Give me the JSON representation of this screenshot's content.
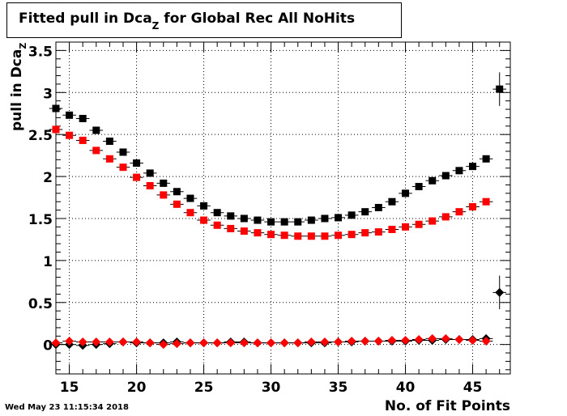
{
  "title": {
    "main": "Fitted pull in Dca",
    "subscript": "Z",
    "rest": " for Global Rec All NoHits"
  },
  "timestamp": "Wed May 23 11:15:34 2018",
  "colors": {
    "series_black": "#000000",
    "series_red": "#ff0000",
    "grid": "#000000"
  },
  "chart_data": {
    "type": "scatter",
    "title": "Fitted pull in Dca_Z for Global Rec All NoHits",
    "xlabel": "No. of Fit Points",
    "ylabel": "pull in Dca",
    "ylabel_subscript": "Z",
    "xlim": [
      14,
      47.8
    ],
    "ylim": [
      -0.35,
      3.6
    ],
    "x_ticks": [
      "15",
      "20",
      "25",
      "30",
      "35",
      "40",
      "45"
    ],
    "y_ticks": [
      "0",
      "0.5",
      "1",
      "1.5",
      "2",
      "2.5",
      "3",
      "3.5"
    ],
    "grid": true,
    "legend": "none",
    "series": [
      {
        "marker": "square",
        "color": "#000000",
        "x": [
          14,
          15,
          16,
          17,
          18,
          19,
          20,
          21,
          22,
          23,
          24,
          25,
          26,
          27,
          28,
          29,
          30,
          31,
          32,
          33,
          34,
          35,
          36,
          37,
          38,
          39,
          40,
          41,
          42,
          43,
          44,
          45,
          46,
          47
        ],
        "y": [
          2.81,
          2.73,
          2.69,
          2.55,
          2.42,
          2.29,
          2.16,
          2.04,
          1.92,
          1.82,
          1.74,
          1.65,
          1.57,
          1.53,
          1.5,
          1.48,
          1.46,
          1.46,
          1.46,
          1.48,
          1.5,
          1.51,
          1.54,
          1.58,
          1.63,
          1.7,
          1.8,
          1.88,
          1.95,
          2.01,
          2.07,
          2.12,
          2.21,
          3.04
        ],
        "y_err": [
          0,
          0,
          0,
          0,
          0,
          0,
          0,
          0,
          0,
          0,
          0,
          0,
          0,
          0,
          0,
          0,
          0,
          0,
          0,
          0,
          0,
          0,
          0,
          0,
          0,
          0,
          0,
          0,
          0,
          0,
          0,
          0,
          0,
          0.2
        ]
      },
      {
        "marker": "square",
        "color": "#ff0000",
        "x": [
          14,
          15,
          16,
          17,
          18,
          19,
          20,
          21,
          22,
          23,
          24,
          25,
          26,
          27,
          28,
          29,
          30,
          31,
          32,
          33,
          34,
          35,
          36,
          37,
          38,
          39,
          40,
          41,
          42,
          43,
          44,
          45,
          46
        ],
        "y": [
          2.56,
          2.49,
          2.43,
          2.31,
          2.21,
          2.11,
          1.99,
          1.89,
          1.78,
          1.67,
          1.57,
          1.48,
          1.42,
          1.38,
          1.35,
          1.33,
          1.31,
          1.3,
          1.29,
          1.29,
          1.29,
          1.3,
          1.31,
          1.33,
          1.34,
          1.37,
          1.4,
          1.43,
          1.47,
          1.52,
          1.58,
          1.64,
          1.7
        ],
        "y_err": [
          0,
          0,
          0,
          0,
          0,
          0,
          0,
          0,
          0,
          0,
          0,
          0,
          0,
          0,
          0,
          0,
          0,
          0,
          0,
          0,
          0,
          0,
          0,
          0,
          0,
          0,
          0,
          0,
          0,
          0,
          0,
          0,
          0
        ]
      },
      {
        "marker": "diamond",
        "color": "#000000",
        "x": [
          14,
          15,
          16,
          17,
          18,
          19,
          20,
          21,
          22,
          23,
          24,
          25,
          26,
          27,
          28,
          29,
          30,
          31,
          32,
          33,
          34,
          35,
          36,
          37,
          38,
          39,
          40,
          41,
          42,
          43,
          44,
          45,
          46,
          47
        ],
        "y": [
          0.0,
          0.0,
          -0.01,
          0.0,
          0.01,
          0.03,
          0.02,
          0.02,
          0.02,
          0.03,
          0.02,
          0.02,
          0.02,
          0.03,
          0.03,
          0.02,
          0.02,
          0.02,
          0.02,
          0.02,
          0.02,
          0.03,
          0.03,
          0.04,
          0.04,
          0.04,
          0.04,
          0.05,
          0.05,
          0.06,
          0.06,
          0.06,
          0.07,
          0.62
        ],
        "y_err": [
          0,
          0,
          0,
          0,
          0,
          0,
          0,
          0,
          0,
          0,
          0,
          0,
          0,
          0,
          0,
          0,
          0,
          0,
          0,
          0,
          0,
          0,
          0,
          0,
          0,
          0,
          0,
          0,
          0,
          0,
          0,
          0,
          0,
          0.2
        ]
      },
      {
        "marker": "diamond",
        "color": "#ff0000",
        "x": [
          14,
          15,
          16,
          17,
          18,
          19,
          20,
          21,
          22,
          23,
          24,
          25,
          26,
          27,
          28,
          29,
          30,
          31,
          32,
          33,
          34,
          35,
          36,
          37,
          38,
          39,
          40,
          41,
          42,
          43,
          44,
          45,
          46
        ],
        "y": [
          0.02,
          0.04,
          0.03,
          0.03,
          0.03,
          0.03,
          0.03,
          0.02,
          0.0,
          0.01,
          0.02,
          0.02,
          0.02,
          0.02,
          0.02,
          0.02,
          0.02,
          0.02,
          0.02,
          0.03,
          0.03,
          0.03,
          0.04,
          0.04,
          0.04,
          0.05,
          0.05,
          0.06,
          0.07,
          0.07,
          0.06,
          0.05,
          0.04
        ],
        "y_err": [
          0,
          0,
          0,
          0,
          0,
          0,
          0,
          0,
          0,
          0,
          0,
          0,
          0,
          0,
          0,
          0,
          0,
          0,
          0,
          0,
          0,
          0,
          0,
          0,
          0,
          0,
          0,
          0,
          0,
          0,
          0,
          0,
          0
        ]
      }
    ]
  }
}
